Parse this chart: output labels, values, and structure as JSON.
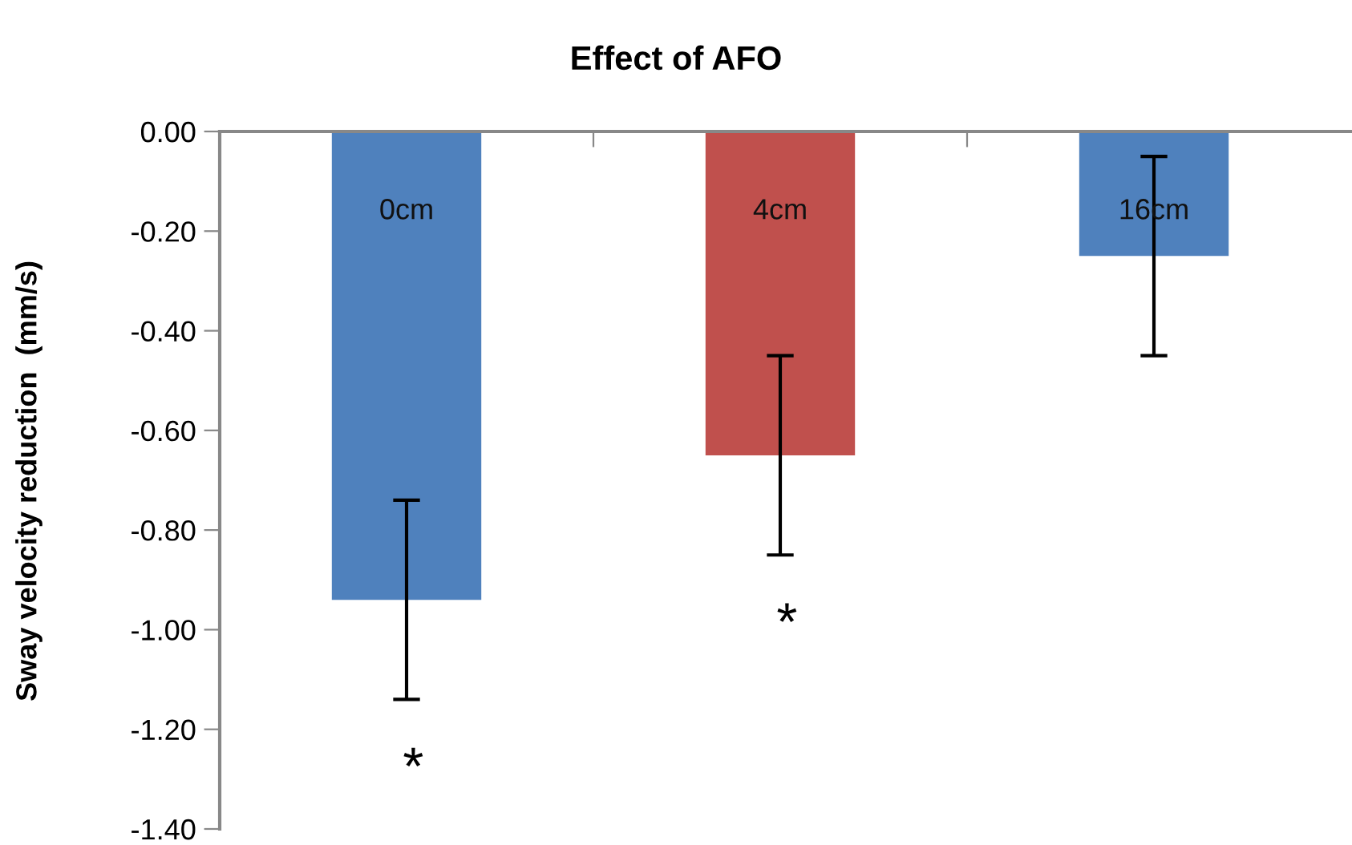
{
  "chart_data": {
    "type": "bar",
    "title": "Effect of AFO",
    "ylabel": "Sway velocity reduction  (mm/s)",
    "categories": [
      "0cm",
      "4cm",
      "16cm"
    ],
    "values": [
      -0.94,
      -0.65,
      -0.25
    ],
    "colors": [
      "#4f81bd",
      "#c0504d",
      "#4f81bd"
    ],
    "errors": [
      0.2,
      0.2,
      0.2
    ],
    "ylim": [
      -1.4,
      0
    ],
    "yticks": [
      {
        "value": 0,
        "label": "0.00"
      },
      {
        "value": -0.2,
        "label": "-0.20"
      },
      {
        "value": -0.4,
        "label": "-0.40"
      },
      {
        "value": -0.6,
        "label": "-0.60"
      },
      {
        "value": -0.8,
        "label": "-0.80"
      },
      {
        "value": -1.0,
        "label": "-1.00"
      },
      {
        "value": -1.2,
        "label": "-1.20"
      },
      {
        "value": -1.4,
        "label": "-1.40"
      }
    ],
    "annotations": [
      "*",
      "*"
    ],
    "grid": false,
    "legend": false
  }
}
